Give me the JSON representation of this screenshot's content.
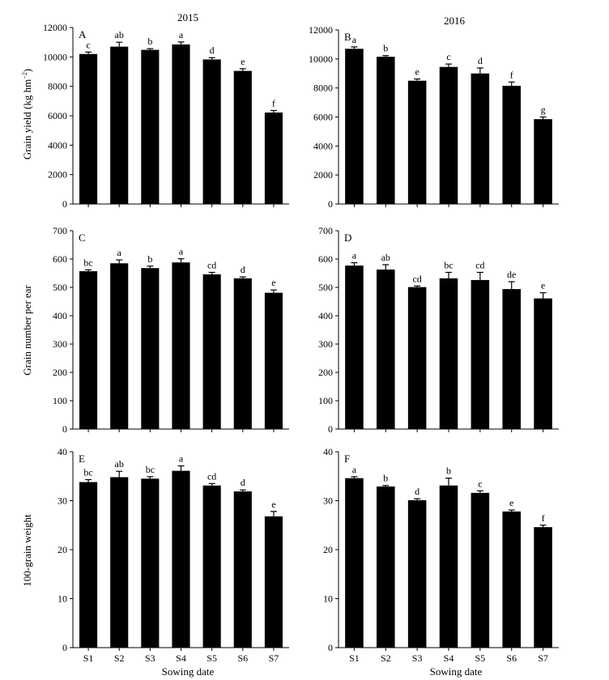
{
  "figure": {
    "year_labels": [
      "2015",
      "2016"
    ],
    "xlabel": "Sowing date",
    "row_ylabels": [
      "Grain yield (kg hm",
      "Grain number per ear",
      "100-grain weight"
    ],
    "yield_unit_superscript": "−2",
    "yield_unit_close": ")"
  },
  "chart_data": [
    {
      "type": "bar",
      "panel": "A",
      "title": "2015",
      "categories": [
        "S1",
        "S2",
        "S3",
        "S4",
        "S5",
        "S6",
        "S7"
      ],
      "values": [
        10200,
        10700,
        10480,
        10850,
        9830,
        9050,
        6220
      ],
      "errors": [
        130,
        300,
        80,
        170,
        120,
        150,
        140
      ],
      "letters": [
        "c",
        "ab",
        "b",
        "a",
        "d",
        "e",
        "f"
      ],
      "ylabel": "Grain yield (kg hm−2)",
      "xlabel": "",
      "ylim": [
        0,
        12000
      ],
      "yticks": [
        0,
        2000,
        4000,
        6000,
        8000,
        10000,
        12000
      ]
    },
    {
      "type": "bar",
      "panel": "B",
      "title": "2016",
      "categories": [
        "S1",
        "S2",
        "S3",
        "S4",
        "S5",
        "S6",
        "S7"
      ],
      "values": [
        10700,
        10150,
        8500,
        9450,
        9000,
        8150,
        5850
      ],
      "errors": [
        130,
        80,
        120,
        200,
        380,
        260,
        150
      ],
      "letters": [
        "a",
        "b",
        "e",
        "c",
        "d",
        "f",
        "g"
      ],
      "ylabel": "",
      "xlabel": "",
      "ylim": [
        0,
        12000
      ],
      "yticks": [
        0,
        2000,
        4000,
        6000,
        8000,
        10000,
        12000
      ]
    },
    {
      "type": "bar",
      "panel": "C",
      "categories": [
        "S1",
        "S2",
        "S3",
        "S4",
        "S5",
        "S6",
        "S7"
      ],
      "values": [
        557,
        585,
        568,
        588,
        546,
        532,
        481
      ],
      "errors": [
        5,
        12,
        7,
        13,
        7,
        5,
        10
      ],
      "letters": [
        "bc",
        "a",
        "b",
        "a",
        "cd",
        "d",
        "e"
      ],
      "ylabel": "Grain number per ear",
      "xlabel": "",
      "ylim": [
        0,
        700
      ],
      "yticks": [
        0,
        100,
        200,
        300,
        400,
        500,
        600,
        700
      ]
    },
    {
      "type": "bar",
      "panel": "D",
      "categories": [
        "S1",
        "S2",
        "S3",
        "S4",
        "S5",
        "S6",
        "S7"
      ],
      "values": [
        577,
        563,
        501,
        532,
        526,
        494,
        461
      ],
      "errors": [
        10,
        17,
        4,
        21,
        27,
        26,
        20
      ],
      "letters": [
        "a",
        "ab",
        "cd",
        "bc",
        "cd",
        "de",
        "e"
      ],
      "ylabel": "",
      "xlabel": "",
      "ylim": [
        0,
        700
      ],
      "yticks": [
        0,
        100,
        200,
        300,
        400,
        500,
        600,
        700
      ]
    },
    {
      "type": "bar",
      "panel": "E",
      "categories": [
        "S1",
        "S2",
        "S3",
        "S4",
        "S5",
        "S6",
        "S7"
      ],
      "values": [
        33.8,
        34.8,
        34.5,
        36.1,
        33.1,
        31.9,
        26.8
      ],
      "errors": [
        0.5,
        1.2,
        0.4,
        1.0,
        0.4,
        0.3,
        1.0
      ],
      "letters": [
        "bc",
        "ab",
        "bc",
        "a",
        "cd",
        "d",
        "e"
      ],
      "ylabel": "100-grain weight",
      "xlabel": "Sowing date",
      "ylim": [
        0,
        40
      ],
      "yticks": [
        0,
        10,
        20,
        30,
        40
      ]
    },
    {
      "type": "bar",
      "panel": "F",
      "categories": [
        "S1",
        "S2",
        "S3",
        "S4",
        "S5",
        "S6",
        "S7"
      ],
      "values": [
        34.6,
        32.9,
        30.1,
        33.1,
        31.6,
        27.8,
        24.6
      ],
      "errors": [
        0.3,
        0.2,
        0.3,
        1.5,
        0.4,
        0.3,
        0.4
      ],
      "letters": [
        "a",
        "b",
        "d",
        "b",
        "c",
        "e",
        "f"
      ],
      "ylabel": "",
      "xlabel": "Sowing date",
      "ylim": [
        0,
        40
      ],
      "yticks": [
        0,
        10,
        20,
        30,
        40
      ]
    }
  ]
}
